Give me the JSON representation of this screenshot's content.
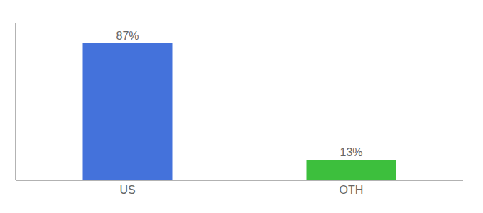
{
  "chart_data": {
    "type": "bar",
    "categories": [
      "US",
      "OTH"
    ],
    "values": [
      87,
      13
    ],
    "value_labels": [
      "87%",
      "13%"
    ],
    "colors": [
      "#4472db",
      "#3dbf3d"
    ],
    "ylim": [
      0,
      100
    ],
    "data_labels": true,
    "tick_labels": "x"
  }
}
